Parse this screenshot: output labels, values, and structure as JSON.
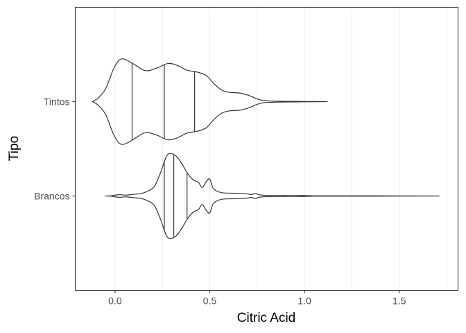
{
  "chart_data": {
    "type": "violin",
    "orientation": "horizontal",
    "xlabel": "Citric Acid",
    "ylabel": "Tipo",
    "xlim": [
      -0.21,
      1.81
    ],
    "x_ticks": [
      0.0,
      0.5,
      1.0,
      1.5
    ],
    "x_tick_labels": [
      "0.0",
      "0.5",
      "1.0",
      "1.5"
    ],
    "categories": [
      "Brancos",
      "Tintos"
    ],
    "grid": true,
    "series": [
      {
        "name": "Tintos",
        "min": -0.12,
        "max": 1.12,
        "quantiles": [
          0.09,
          0.26,
          0.42
        ],
        "density": [
          [
            -0.12,
            0.0
          ],
          [
            -0.09,
            0.08
          ],
          [
            -0.05,
            0.3
          ],
          [
            -0.01,
            0.75
          ],
          [
            0.02,
            0.97
          ],
          [
            0.05,
            1.0
          ],
          [
            0.1,
            0.88
          ],
          [
            0.16,
            0.73
          ],
          [
            0.22,
            0.79
          ],
          [
            0.28,
            0.9
          ],
          [
            0.33,
            0.85
          ],
          [
            0.38,
            0.74
          ],
          [
            0.43,
            0.7
          ],
          [
            0.48,
            0.62
          ],
          [
            0.52,
            0.43
          ],
          [
            0.56,
            0.28
          ],
          [
            0.6,
            0.22
          ],
          [
            0.66,
            0.2
          ],
          [
            0.71,
            0.14
          ],
          [
            0.76,
            0.05
          ],
          [
            0.82,
            0.015
          ],
          [
            1.0,
            0.004
          ],
          [
            1.12,
            0.0
          ]
        ]
      },
      {
        "name": "Brancos",
        "min": -0.05,
        "max": 1.71,
        "quantiles": [
          0.26,
          0.31,
          0.38
        ],
        "density": [
          [
            -0.05,
            0.0
          ],
          [
            -0.02,
            0.005
          ],
          [
            0.02,
            0.03
          ],
          [
            0.06,
            0.02
          ],
          [
            0.1,
            0.04
          ],
          [
            0.14,
            0.06
          ],
          [
            0.18,
            0.13
          ],
          [
            0.21,
            0.24
          ],
          [
            0.24,
            0.55
          ],
          [
            0.27,
            0.92
          ],
          [
            0.29,
            1.0
          ],
          [
            0.32,
            0.95
          ],
          [
            0.35,
            0.78
          ],
          [
            0.38,
            0.55
          ],
          [
            0.41,
            0.39
          ],
          [
            0.44,
            0.32
          ],
          [
            0.46,
            0.2
          ],
          [
            0.48,
            0.33
          ],
          [
            0.5,
            0.4
          ],
          [
            0.52,
            0.17
          ],
          [
            0.56,
            0.08
          ],
          [
            0.62,
            0.065
          ],
          [
            0.68,
            0.058
          ],
          [
            0.72,
            0.035
          ],
          [
            0.74,
            0.06
          ],
          [
            0.76,
            0.03
          ],
          [
            0.8,
            0.015
          ],
          [
            0.9,
            0.01
          ],
          [
            0.95,
            0.008
          ],
          [
            1.0,
            0.012
          ],
          [
            1.05,
            0.005
          ],
          [
            1.2,
            0.004
          ],
          [
            1.5,
            0.003
          ],
          [
            1.71,
            0.0
          ]
        ]
      }
    ]
  }
}
